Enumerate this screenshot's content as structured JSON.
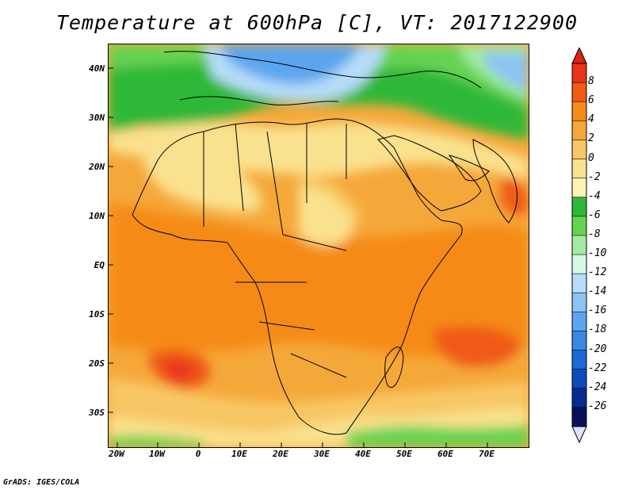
{
  "title": "Temperature at 600hPa [C], VT: 2017122900",
  "credit": "GrADS: IGES/COLA",
  "lat_labels": [
    "40N",
    "30N",
    "20N",
    "10N",
    "EQ",
    "10S",
    "20S",
    "30S"
  ],
  "lon_labels": [
    "20W",
    "10W",
    "0",
    "10E",
    "20E",
    "30E",
    "40E",
    "50E",
    "60E",
    "70E"
  ],
  "colorbar": {
    "labels": [
      "8",
      "6",
      "4",
      "2",
      "0",
      "-2",
      "-4",
      "-6",
      "-8",
      "-10",
      "-12",
      "-14",
      "-16",
      "-18",
      "-20",
      "-22",
      "-24",
      "-26"
    ],
    "colors": [
      "#e8341a",
      "#f05a12",
      "#f58b18",
      "#f5a83a",
      "#f8c765",
      "#fae18e",
      "#fdf3b6",
      "#2fb838",
      "#66d352",
      "#a2eba0",
      "#d8f8e6",
      "#b6dcf8",
      "#8cc4f3",
      "#5ca6ef",
      "#3a88e4",
      "#1c6ad6",
      "#0c4bbd",
      "#062a8f",
      "#0a0f5a",
      "#e4e0ff"
    ],
    "top_arrow_color": "#e0200f",
    "bottom_arrow_color": "#e4e0ff"
  }
}
